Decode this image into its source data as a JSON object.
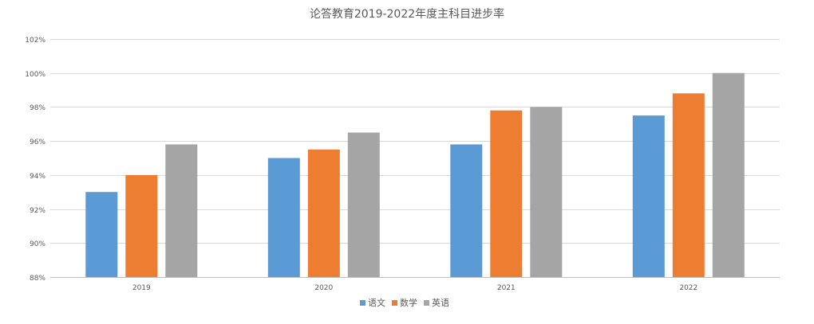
{
  "chart_data": {
    "type": "bar",
    "title": "论答教育2019-2022年度主科目进步率",
    "categories": [
      "2019",
      "2020",
      "2021",
      "2022"
    ],
    "series": [
      {
        "name": "语文",
        "color": "#5b9bd5",
        "values": [
          93.0,
          95.0,
          95.8,
          97.5
        ]
      },
      {
        "name": "数学",
        "color": "#ed7d31",
        "values": [
          94.0,
          95.5,
          97.8,
          98.8
        ]
      },
      {
        "name": "英语",
        "color": "#a5a5a5",
        "values": [
          95.8,
          96.5,
          98.0,
          100.0
        ]
      }
    ],
    "ylim": [
      88,
      102
    ],
    "yticks": [
      "88%",
      "90%",
      "92%",
      "94%",
      "96%",
      "98%",
      "100%",
      "102%"
    ],
    "xlabel": "",
    "ylabel": "",
    "grid": true,
    "legend_position": "bottom"
  }
}
